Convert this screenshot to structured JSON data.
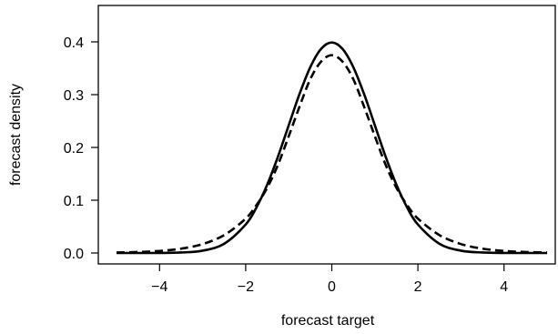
{
  "chart_data": {
    "type": "line",
    "title": "",
    "xlabel": "forecast target",
    "ylabel": "forecast density",
    "xlim": [
      -5,
      5
    ],
    "ylim": [
      0.0,
      0.4
    ],
    "xticks": [
      -4,
      -2,
      0,
      2,
      4
    ],
    "xtick_labels": [
      "−4",
      "−2",
      "0",
      "2",
      "4"
    ],
    "yticks": [
      0.0,
      0.1,
      0.2,
      0.3,
      0.4
    ],
    "ytick_labels": [
      "0.0",
      "0.1",
      "0.2",
      "0.3",
      "0.4"
    ],
    "grid": false,
    "legend": "none",
    "series": [
      {
        "style": "solid",
        "color": "#000000",
        "x": [
          -5,
          -4.5,
          -4,
          -3.5,
          -3,
          -2.5,
          -2,
          -1.75,
          -1.5,
          -1.25,
          -1,
          -0.75,
          -0.5,
          -0.25,
          0,
          0.25,
          0.5,
          0.75,
          1,
          1.25,
          1.5,
          1.75,
          2,
          2.5,
          3,
          3.5,
          4,
          4.5,
          5
        ],
        "y": [
          0.0,
          0.0,
          0.0001,
          0.0009,
          0.0044,
          0.0175,
          0.054,
          0.0863,
          0.1295,
          0.1826,
          0.242,
          0.3011,
          0.3521,
          0.3867,
          0.3989,
          0.3867,
          0.3521,
          0.3011,
          0.242,
          0.1826,
          0.1295,
          0.0863,
          0.054,
          0.0175,
          0.0044,
          0.0009,
          0.0001,
          0.0,
          0.0
        ]
      },
      {
        "style": "dashed",
        "color": "#000000",
        "x": [
          -5,
          -4.5,
          -4,
          -3.5,
          -3,
          -2.5,
          -2,
          -1.75,
          -1.5,
          -1.25,
          -1,
          -0.75,
          -0.5,
          -0.25,
          0,
          0.25,
          0.5,
          0.75,
          1,
          1.25,
          1.5,
          1.75,
          2,
          2.5,
          3,
          3.5,
          4,
          4.5,
          5
        ],
        "y": [
          0.0009,
          0.0019,
          0.0039,
          0.0082,
          0.0169,
          0.0339,
          0.0651,
          0.0908,
          0.1236,
          0.1672,
          0.2213,
          0.2773,
          0.3293,
          0.3625,
          0.3748,
          0.3625,
          0.3293,
          0.2773,
          0.2213,
          0.1672,
          0.1236,
          0.0908,
          0.0651,
          0.0339,
          0.0169,
          0.0082,
          0.0039,
          0.0019,
          0.0009
        ]
      }
    ]
  }
}
